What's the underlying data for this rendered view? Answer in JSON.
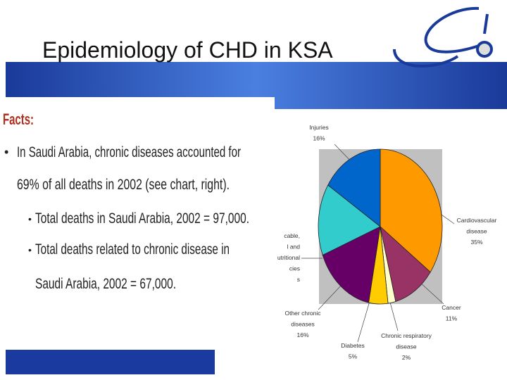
{
  "title": "Epidemiology of CHD in KSA",
  "facts": {
    "heading": "Facts:",
    "bullet_lines": [
      "In Saudi Arabia, chronic diseases accounted for",
      "69% of all deaths in 2002 (see chart, right)."
    ],
    "sub_bullets": [
      [
        "Total deaths in Saudi Arabia, 2002 = 97,000."
      ],
      [
        "Total deaths related to chronic disease in",
        "Saudi Arabia, 2002 = 67,000."
      ]
    ]
  },
  "chart_data": {
    "type": "pie",
    "categories": [
      [
        "Cardiovascular",
        "disease"
      ],
      [
        "Cancer"
      ],
      [
        "Chronic respiratory",
        "disease"
      ],
      [
        "Diabetes"
      ],
      [
        "Other chronic",
        "diseases"
      ],
      [
        "cable,",
        "l and",
        "utritional",
        "cies",
        "s"
      ],
      [
        "Injuries"
      ]
    ],
    "values": [
      35,
      11,
      2,
      5,
      16,
      15,
      16
    ],
    "value_labels": [
      "35%",
      "11%",
      "2%",
      "5%",
      "16%",
      null,
      "16%"
    ],
    "colors": [
      "#ff9900",
      "#993366",
      "#ffffcc",
      "#ffcc00",
      "#660066",
      "#33cccc",
      "#0066cc"
    ]
  }
}
